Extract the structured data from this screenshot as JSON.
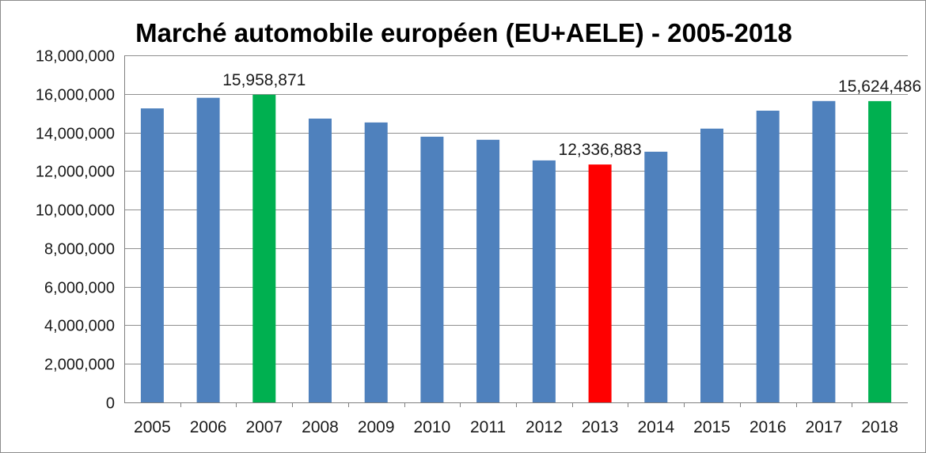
{
  "chart_data": {
    "type": "bar",
    "title": "Marché automobile européen (EU+AELE) - 2005-2018",
    "xlabel": "",
    "ylabel": "",
    "ylim": [
      0,
      18000000
    ],
    "ytick_step": 2000000,
    "ytick_labels": [
      "0",
      "2,000,000",
      "4,000,000",
      "6,000,000",
      "8,000,000",
      "10,000,000",
      "12,000,000",
      "14,000,000",
      "16,000,000",
      "18,000,000"
    ],
    "grid": true,
    "legend": "none",
    "categories": [
      "2005",
      "2006",
      "2007",
      "2008",
      "2009",
      "2010",
      "2011",
      "2012",
      "2013",
      "2014",
      "2015",
      "2016",
      "2017",
      "2018"
    ],
    "values": [
      15250000,
      15800000,
      15958871,
      14720000,
      14520000,
      13780000,
      13620000,
      12550000,
      12336883,
      13000000,
      14200000,
      15130000,
      15630000,
      15624486
    ],
    "bar_colors": [
      "#4f81bd",
      "#4f81bd",
      "#00b050",
      "#4f81bd",
      "#4f81bd",
      "#4f81bd",
      "#4f81bd",
      "#4f81bd",
      "#ff0000",
      "#4f81bd",
      "#4f81bd",
      "#4f81bd",
      "#4f81bd",
      "#00b050"
    ],
    "data_labels": [
      {
        "category": "2007",
        "text": "15,958,871"
      },
      {
        "category": "2013",
        "text": "12,336,883"
      },
      {
        "category": "2018",
        "text": "15,624,486"
      }
    ]
  }
}
